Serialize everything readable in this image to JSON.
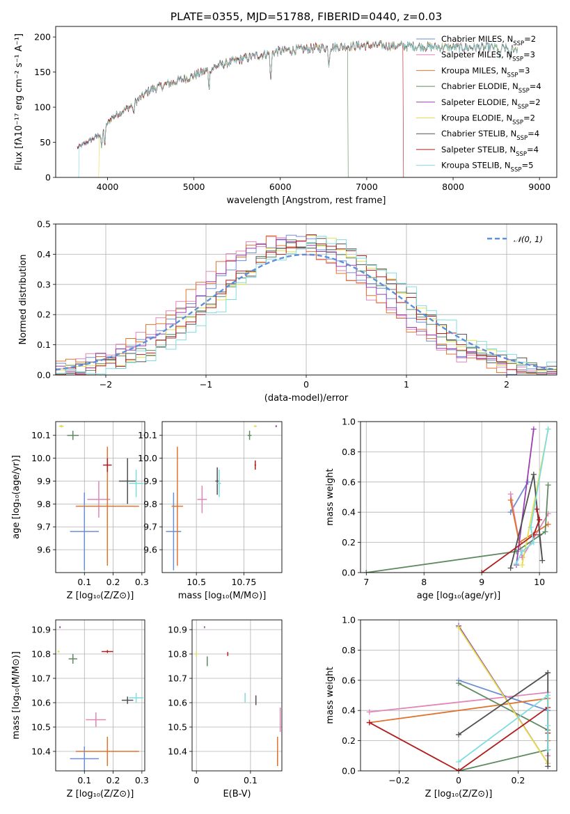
{
  "title": "PLATE=0355, MJD=51788, FIBERID=0440, z=0.03",
  "models": [
    {
      "name": "Chabrier MILES",
      "nssp": 2,
      "color": "#6a8fd4"
    },
    {
      "name": "Salpeter MILES",
      "nssp": 3,
      "color": "#e186b6"
    },
    {
      "name": "Kroupa MILES",
      "nssp": 3,
      "color": "#e0732c"
    },
    {
      "name": "Chabrier ELODIE",
      "nssp": 4,
      "color": "#5e8a61"
    },
    {
      "name": "Salpeter ELODIE",
      "nssp": 2,
      "color": "#9a3fb1"
    },
    {
      "name": "Kroupa ELODIE",
      "nssp": 2,
      "color": "#e3e04a"
    },
    {
      "name": "Chabrier STELIB",
      "nssp": 4,
      "color": "#505050"
    },
    {
      "name": "Salpeter STELIB",
      "nssp": 4,
      "color": "#b21c1c"
    },
    {
      "name": "Kroupa STELIB",
      "nssp": 5,
      "color": "#7fdce0"
    }
  ],
  "chart_data": [
    {
      "id": "spectrum",
      "type": "line",
      "xlabel": "wavelength [Angstrom, rest frame]",
      "ylabel": "Flux [fλ10⁻¹⁷ erg cm⁻² s⁻¹ A⁻¹]",
      "xlim": [
        3400,
        9200
      ],
      "ylim": [
        0,
        215
      ],
      "xticks": [
        4000,
        5000,
        6000,
        7000,
        8000,
        9000
      ],
      "yticks": [
        0,
        50,
        100,
        150,
        200
      ],
      "xrange_model": [
        3650,
        8750
      ],
      "continuum_knots": [
        [
          3650,
          42
        ],
        [
          3900,
          60
        ],
        [
          4050,
          85
        ],
        [
          4250,
          100
        ],
        [
          4500,
          125
        ],
        [
          5000,
          145
        ],
        [
          5300,
          160
        ],
        [
          5600,
          170
        ],
        [
          6000,
          180
        ],
        [
          6500,
          185
        ],
        [
          7000,
          188
        ],
        [
          7500,
          187
        ],
        [
          8000,
          185
        ],
        [
          8500,
          185
        ],
        [
          8750,
          183
        ]
      ],
      "absorption_lines": [
        [
          3933,
          25
        ],
        [
          3968,
          25
        ],
        [
          4300,
          15
        ],
        [
          5175,
          25
        ],
        [
          5890,
          40
        ],
        [
          6563,
          25
        ],
        [
          8540,
          20
        ],
        [
          8660,
          20
        ]
      ],
      "model_cutoffs": [
        [
          5,
          3900
        ],
        [
          3,
          6780
        ],
        [
          7,
          7420
        ],
        [
          8,
          3670
        ]
      ],
      "legend": "upper right",
      "grid": false
    },
    {
      "id": "residuals",
      "type": "histogram",
      "xlabel": "(data-model)/error",
      "ylabel": "Normed distribution",
      "xlim": [
        -2.5,
        2.5
      ],
      "ylim": [
        0,
        0.5
      ],
      "xticks": [
        -2,
        -1,
        0,
        1,
        2
      ],
      "yticks": [
        0.0,
        0.1,
        0.2,
        0.3,
        0.4,
        0.5
      ],
      "bin_width": 0.1,
      "center_shifts": [
        -0.25,
        -0.4,
        -0.4,
        0.0,
        -0.25,
        0.1,
        0.15,
        0.05,
        0.3
      ],
      "reference_curve": {
        "name": "𝒩(0, 1)",
        "mean": 0,
        "sigma": 1,
        "color": "#5b8fd8",
        "dashed": true
      },
      "legend": "upper right",
      "grid": true
    },
    {
      "id": "age_vs_Z",
      "type": "errorbar",
      "xlabel": "Z [log₁₀(Z/Z⊙)]",
      "ylabel": "age  [log₁₀(age/yr)]",
      "xlim": [
        0.0,
        0.31
      ],
      "ylim": [
        9.5,
        10.16
      ],
      "xticks": [
        0.1,
        0.2,
        0.3
      ],
      "yticks": [
        9.6,
        9.7,
        9.8,
        9.9,
        10.0,
        10.1
      ],
      "points": [
        {
          "x": 0.1,
          "xerr": 0.05,
          "y": 9.68,
          "yerr": 0.17,
          "model": 0
        },
        {
          "x": 0.15,
          "xerr": 0.04,
          "y": 9.82,
          "yerr": 0.08,
          "model": 1
        },
        {
          "x": 0.18,
          "xerr": 0.11,
          "y": 9.79,
          "yerr": 0.26,
          "model": 2
        },
        {
          "x": 0.06,
          "xerr": 0.02,
          "y": 10.1,
          "yerr": 0.02,
          "model": 3
        },
        {
          "x": 0.02,
          "xerr": 0.005,
          "y": 10.14,
          "yerr": 0.005,
          "model": 4
        },
        {
          "x": 0.02,
          "xerr": 0.008,
          "y": 10.14,
          "yerr": 0.005,
          "model": 5
        },
        {
          "x": 0.25,
          "xerr": 0.03,
          "y": 9.9,
          "yerr": 0.1,
          "model": 6
        },
        {
          "x": 0.18,
          "xerr": 0.015,
          "y": 9.97,
          "yerr": 0.03,
          "model": 7
        },
        {
          "x": 0.28,
          "xerr": 0.025,
          "y": 9.89,
          "yerr": 0.06,
          "model": 8
        }
      ],
      "grid": true
    },
    {
      "id": "age_vs_mass",
      "type": "errorbar",
      "xlabel": "mass [log₁₀(M/M⊙)]",
      "ylabel": "",
      "xlim": [
        10.32,
        10.95
      ],
      "ylim": [
        9.5,
        10.16
      ],
      "xticks": [
        10.5,
        10.75
      ],
      "yticks": [
        9.6,
        9.7,
        9.8,
        9.9,
        10.0,
        10.1
      ],
      "points": [
        {
          "x": 10.38,
          "xerr": 0.04,
          "y": 9.68,
          "yerr": 0.17,
          "model": 0
        },
        {
          "x": 10.53,
          "xerr": 0.025,
          "y": 9.82,
          "yerr": 0.06,
          "model": 1
        },
        {
          "x": 10.4,
          "xerr": 0.03,
          "y": 9.79,
          "yerr": 0.26,
          "model": 2
        },
        {
          "x": 10.78,
          "xerr": 0.01,
          "y": 10.1,
          "yerr": 0.02,
          "model": 3
        },
        {
          "x": 10.92,
          "xerr": 0.004,
          "y": 10.14,
          "yerr": 0.004,
          "model": 4
        },
        {
          "x": 10.81,
          "xerr": 0.008,
          "y": 10.14,
          "yerr": 0.004,
          "model": 5
        },
        {
          "x": 10.61,
          "xerr": 0.01,
          "y": 9.9,
          "yerr": 0.06,
          "model": 6
        },
        {
          "x": 10.81,
          "xerr": 0.004,
          "y": 9.97,
          "yerr": 0.02,
          "model": 7
        },
        {
          "x": 10.62,
          "xerr": 0.01,
          "y": 9.89,
          "yerr": 0.06,
          "model": 8
        }
      ],
      "grid": true
    },
    {
      "id": "weight_vs_age",
      "type": "line",
      "xlabel": "age  [log₁₀(age/yr)]",
      "ylabel": "mass weight",
      "xlim": [
        6.9,
        10.3
      ],
      "ylim": [
        0,
        1
      ],
      "xticks": [
        7,
        8,
        9,
        10
      ],
      "yticks": [
        0.0,
        0.2,
        0.4,
        0.6,
        0.8,
        1.0
      ],
      "series": [
        {
          "model": 0,
          "points": [
            [
              9.8,
              0.6
            ],
            [
              9.5,
              0.4
            ]
          ]
        },
        {
          "model": 1,
          "points": [
            [
              9.5,
              0.52
            ],
            [
              9.7,
              0.1
            ],
            [
              10.15,
              0.39
            ]
          ]
        },
        {
          "model": 2,
          "points": [
            [
              9.5,
              0.48
            ],
            [
              9.65,
              0.2
            ],
            [
              10.15,
              0.32
            ]
          ]
        },
        {
          "model": 3,
          "points": [
            [
              7.0,
              0.0
            ],
            [
              9.6,
              0.14
            ],
            [
              10.1,
              0.27
            ],
            [
              10.15,
              0.58
            ]
          ]
        },
        {
          "model": 4,
          "points": [
            [
              9.6,
              0.05
            ],
            [
              9.9,
              0.95
            ]
          ]
        },
        {
          "model": 5,
          "points": [
            [
              9.7,
              0.05
            ],
            [
              10.15,
              0.95
            ]
          ]
        },
        {
          "model": 6,
          "points": [
            [
              9.5,
              0.03
            ],
            [
              9.9,
              0.65
            ],
            [
              10.05,
              0.08
            ],
            [
              10.0,
              0.25
            ]
          ]
        },
        {
          "model": 7,
          "points": [
            [
              9.0,
              0.0
            ],
            [
              9.9,
              0.25
            ],
            [
              10.0,
              0.35
            ],
            [
              9.95,
              0.42
            ]
          ]
        },
        {
          "model": 8,
          "points": [
            [
              9.6,
              0.06
            ],
            [
              9.7,
              0.14
            ],
            [
              9.9,
              0.2
            ],
            [
              9.85,
              0.3
            ],
            [
              10.15,
              0.95
            ]
          ]
        }
      ],
      "grid": true
    },
    {
      "id": "mass_vs_Z",
      "type": "errorbar",
      "xlabel": "Z [log₁₀(Z/Z⊙)]",
      "ylabel": "mass [log₁₀(M/M⊙)]",
      "xlim": [
        0.0,
        0.31
      ],
      "ylim": [
        10.32,
        10.94
      ],
      "xticks": [
        0.1,
        0.2,
        0.3
      ],
      "yticks": [
        10.4,
        10.5,
        10.6,
        10.7,
        10.8,
        10.9
      ],
      "points": [
        {
          "x": 0.1,
          "xerr": 0.05,
          "y": 10.37,
          "yerr": 0.05,
          "model": 0
        },
        {
          "x": 0.14,
          "xerr": 0.035,
          "y": 10.53,
          "yerr": 0.03,
          "model": 1
        },
        {
          "x": 0.18,
          "xerr": 0.11,
          "y": 10.4,
          "yerr": 0.06,
          "model": 2
        },
        {
          "x": 0.06,
          "xerr": 0.015,
          "y": 10.78,
          "yerr": 0.02,
          "model": 3
        },
        {
          "x": 0.015,
          "xerr": 0.002,
          "y": 10.91,
          "yerr": 0.004,
          "model": 4
        },
        {
          "x": 0.01,
          "xerr": 0.004,
          "y": 10.81,
          "yerr": 0.004,
          "model": 5
        },
        {
          "x": 0.25,
          "xerr": 0.02,
          "y": 10.61,
          "yerr": 0.015,
          "model": 6
        },
        {
          "x": 0.18,
          "xerr": 0.02,
          "y": 10.81,
          "yerr": 0.006,
          "model": 7
        },
        {
          "x": 0.28,
          "xerr": 0.025,
          "y": 10.62,
          "yerr": 0.02,
          "model": 8
        }
      ],
      "grid": true
    },
    {
      "id": "mass_vs_EBV",
      "type": "errorbar",
      "xlabel": "E(B-V)",
      "ylabel": "",
      "xlim": [
        -0.008,
        0.158
      ],
      "ylim": [
        10.32,
        10.94
      ],
      "xticks": [
        0.0,
        0.1
      ],
      "yticks": [
        10.4,
        10.5,
        10.6,
        10.7,
        10.8,
        10.9
      ],
      "points": [
        {
          "x": 0.15,
          "xerr": 0.0,
          "y": 10.37,
          "yerr": 0.03,
          "model": 0
        },
        {
          "x": 0.155,
          "xerr": 0.0,
          "y": 10.53,
          "yerr": 0.05,
          "model": 1
        },
        {
          "x": 0.15,
          "xerr": 0.0,
          "y": 10.4,
          "yerr": 0.06,
          "model": 2
        },
        {
          "x": 0.02,
          "xerr": 0.0,
          "y": 10.77,
          "yerr": 0.02,
          "model": 3
        },
        {
          "x": 0.015,
          "xerr": 0.0,
          "y": 10.91,
          "yerr": 0.004,
          "model": 4
        },
        {
          "x": 0.0,
          "xerr": 0.0,
          "y": 10.8,
          "yerr": 0.01,
          "model": 5
        },
        {
          "x": 0.11,
          "xerr": 0.0,
          "y": 10.61,
          "yerr": 0.02,
          "model": 6
        },
        {
          "x": 0.058,
          "xerr": 0.0,
          "y": 10.8,
          "yerr": 0.008,
          "model": 7
        },
        {
          "x": 0.09,
          "xerr": 0.0,
          "y": 10.62,
          "yerr": 0.02,
          "model": 8
        }
      ],
      "grid": true
    },
    {
      "id": "weight_vs_Z",
      "type": "line",
      "xlabel": "Z [log₁₀(Z/Z⊙)]",
      "ylabel": "mass weight",
      "xlim": [
        -0.33,
        0.33
      ],
      "ylim": [
        0,
        1
      ],
      "xticks": [
        -0.2,
        0.0,
        0.2
      ],
      "yticks": [
        0.0,
        0.2,
        0.4,
        0.6,
        0.8,
        1.0
      ],
      "series": [
        {
          "model": 0,
          "points": [
            [
              0.0,
              0.6
            ],
            [
              0.3,
              0.4
            ]
          ]
        },
        {
          "model": 1,
          "points": [
            [
              -0.3,
              0.39
            ],
            [
              0.3,
              0.52
            ],
            [
              0.3,
              0.1
            ]
          ]
        },
        {
          "model": 2,
          "points": [
            [
              -0.3,
              0.32
            ],
            [
              0.3,
              0.48
            ],
            [
              0.3,
              0.2
            ]
          ]
        },
        {
          "model": 3,
          "points": [
            [
              0.0,
              0.0
            ],
            [
              0.3,
              0.14
            ],
            [
              0.3,
              0.27
            ],
            [
              0.0,
              0.58
            ]
          ]
        },
        {
          "model": 4,
          "points": [
            [
              0.0,
              0.96
            ],
            [
              0.3,
              0.05
            ]
          ]
        },
        {
          "model": 5,
          "points": [
            [
              0.0,
              0.95
            ],
            [
              0.3,
              0.05
            ]
          ]
        },
        {
          "model": 6,
          "points": [
            [
              0.0,
              0.24
            ],
            [
              0.3,
              0.65
            ],
            [
              0.3,
              0.03
            ]
          ]
        },
        {
          "model": 7,
          "points": [
            [
              -0.3,
              0.32
            ],
            [
              0.0,
              0.0
            ],
            [
              0.3,
              0.42
            ],
            [
              0.3,
              0.25
            ]
          ]
        },
        {
          "model": 8,
          "points": [
            [
              0.0,
              0.06
            ],
            [
              0.3,
              0.5
            ],
            [
              0.3,
              0.3
            ],
            [
              0.3,
              0.14
            ]
          ]
        }
      ],
      "grid": true
    }
  ]
}
